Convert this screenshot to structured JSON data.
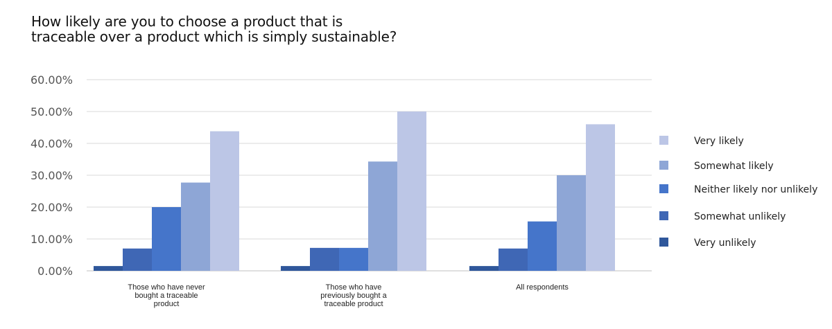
{
  "title_lines": [
    "How likely are you to choose a product that is",
    "traceable over a product which is simply sustainable?"
  ],
  "chart_data": {
    "type": "bar",
    "title": "How likely are you to choose a product that is traceable over a product which is simply sustainable?",
    "xlabel": "",
    "ylabel": "",
    "ylim": [
      0,
      60
    ],
    "ytick_labels": [
      "0.00%",
      "10.00%",
      "20.00%",
      "30.00%",
      "40.00%",
      "50.00%",
      "60.00%"
    ],
    "grid": true,
    "legend_position": "right",
    "categories": [
      [
        "Those who have never",
        "bought a traceable",
        "product"
      ],
      [
        "Those who have",
        "previously bought a",
        "traceable product"
      ],
      [
        "All respondents"
      ]
    ],
    "series": [
      {
        "name": "Very unlikely",
        "color": "#2f579b",
        "values": [
          1.5,
          1.5,
          1.5
        ]
      },
      {
        "name": "Somewhat unlikely",
        "color": "#3f67b5",
        "values": [
          7,
          7.2,
          7
        ]
      },
      {
        "name": "Neither likely nor unlikely",
        "color": "#4575ca",
        "values": [
          20,
          7.2,
          15.5
        ]
      },
      {
        "name": "Somewhat likely",
        "color": "#8ea6d6",
        "values": [
          27.7,
          34.3,
          30
        ]
      },
      {
        "name": "Very likely",
        "color": "#bcc6e6",
        "values": [
          43.8,
          50,
          46
        ]
      }
    ]
  }
}
